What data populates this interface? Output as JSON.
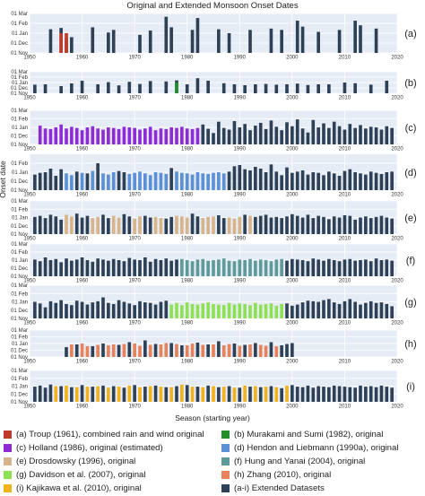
{
  "chart_data": {
    "type": "bar",
    "title": "Original and Extended Monsoon Onset Dates",
    "xlabel": "Season (starting year)",
    "ylabel": "Onset date",
    "x_ticks": [
      "1950",
      "1960",
      "1970",
      "1980",
      "1990",
      "2000",
      "2010",
      "2020"
    ],
    "y_ticks": [
      "01 Nov",
      "01 Dec",
      "01 Jan",
      "01 Feb",
      "01 Mar"
    ],
    "y_ticks_d": [
      "01 Nov",
      "01 Dec",
      "01 Jan",
      "01 Feb"
    ],
    "xlim": [
      1950,
      2020
    ],
    "ylim_days_from_01_Nov": [
      0,
      120
    ],
    "colors": {
      "troup": "#c0392b",
      "murakami": "#1e8f2a",
      "holland": "#8e2bd6",
      "hendon": "#5b8fd6",
      "drosdowsky": "#d8b48a",
      "hung": "#5f9a9b",
      "davidson": "#8ee055",
      "zhang": "#e8825a",
      "kajikawa": "#f2b21c",
      "extended": "#2d4056",
      "panel_bg": "#e6ecf6",
      "grid": "#ffffff"
    },
    "legend": [
      {
        "key": "troup",
        "label": "(a) Troup (1961), combined rain and wind original"
      },
      {
        "key": "murakami",
        "label": "(b) Murakami and Sumi (1982), original"
      },
      {
        "key": "holland",
        "label": "(c) Holland (1986), original (estimated)"
      },
      {
        "key": "hendon",
        "label": "(d) Hendon and Liebmann (1990a), original"
      },
      {
        "key": "drosdowsky",
        "label": "(e) Drosdowsky (1996), original"
      },
      {
        "key": "hung",
        "label": "(f) Hung and Yanai (2004), original"
      },
      {
        "key": "davidson",
        "label": "(g) Davidson et al. (2007), original"
      },
      {
        "key": "zhang",
        "label": "(h) Zhang (2010), original"
      },
      {
        "key": "kajikawa",
        "label": "(i) Kajikawa et al. (2010), original"
      },
      {
        "key": "extended",
        "label": "(a-i) Extended Datasets"
      }
    ],
    "panels": [
      {
        "label": "(a)",
        "orig_key": "troup",
        "orig_years": [
          1956,
          1957
        ],
        "ext_years": [
          1954,
          1956,
          1957,
          1958,
          1962,
          1965,
          1966,
          1971,
          1973,
          1976,
          1977,
          1981,
          1982,
          1986,
          1988,
          1992,
          1996,
          1998,
          2001,
          2002,
          2005,
          2009,
          2012,
          2013,
          2016
        ],
        "values": [
          72,
          76,
          45,
          48,
          78,
          62,
          70,
          55,
          68,
          110,
          78,
          70,
          106,
          72,
          60,
          70,
          74,
          70,
          98,
          80,
          64,
          70,
          98,
          84,
          74
        ]
      },
      {
        "label": "(b)",
        "orig_key": "murakami",
        "orig_years": [
          1978
        ],
        "ext_years": [
          1951,
          1953,
          1956,
          1958,
          1960,
          1963,
          1965,
          1967,
          1969,
          1971,
          1973,
          1976,
          1978,
          1980,
          1982,
          1984,
          1987,
          1989,
          1991,
          1993,
          1995,
          1997,
          1999,
          2001,
          2003,
          2005,
          2007,
          2010,
          2012,
          2015,
          2018
        ],
        "values": [
          48,
          50,
          40,
          55,
          70,
          50,
          62,
          44,
          64,
          52,
          68,
          66,
          72,
          50,
          84,
          70,
          56,
          50,
          45,
          50,
          52,
          48,
          50,
          54,
          46,
          50,
          50,
          60,
          56,
          48,
          70
        ]
      },
      {
        "label": "(c)",
        "orig_key": "holland",
        "orig_years": [
          1952,
          1953,
          1954,
          1955,
          1956,
          1957,
          1958,
          1959,
          1960,
          1961,
          1962,
          1963,
          1964,
          1965,
          1966,
          1967,
          1968,
          1969,
          1970,
          1971,
          1972,
          1973,
          1974,
          1975,
          1976,
          1977,
          1978,
          1979,
          1980,
          1981,
          1982
        ],
        "ext_years": [
          1983,
          1984,
          1985,
          1986,
          1987,
          1988,
          1989,
          1990,
          1991,
          1992,
          1993,
          1994,
          1995,
          1996,
          1997,
          1998,
          1999,
          2000,
          2001,
          2002,
          2003,
          2004,
          2005,
          2006,
          2007,
          2008,
          2009,
          2010,
          2011,
          2012,
          2013,
          2014,
          2015,
          2016,
          2017,
          2018,
          2019
        ],
        "values": [
          70,
          55,
          40,
          80,
          58,
          52,
          82,
          60,
          72,
          50,
          66,
          76,
          54,
          84,
          62,
          50,
          78,
          64,
          88,
          56,
          42,
          86,
          60,
          74,
          58,
          80,
          64,
          52,
          72,
          58,
          68,
          56,
          62,
          60,
          52,
          64,
          58,
          66,
          56,
          54,
          60,
          70,
          56,
          62,
          58,
          50,
          60,
          64,
          56,
          52,
          60,
          58,
          54,
          62,
          60,
          58,
          52,
          56,
          62,
          50,
          56,
          54,
          60,
          58,
          62,
          56,
          54,
          58
        ]
      },
      {
        "label": "(d)",
        "orig_key": "hendon",
        "orig_years": [
          1957,
          1958,
          1960,
          1962,
          1964,
          1965,
          1966,
          1969,
          1970,
          1971,
          1972,
          1973,
          1974,
          1975,
          1976,
          1978,
          1979,
          1980,
          1981,
          1982,
          1983,
          1984,
          1985,
          1986,
          1987
        ],
        "ext_years": [
          1951,
          1952,
          1953,
          1954,
          1955,
          1956,
          1959,
          1961,
          1963,
          1967,
          1968,
          1977,
          1988,
          1989,
          1990,
          1991,
          1992,
          1993,
          1994,
          1995,
          1996,
          1997,
          1998,
          1999,
          2000,
          2001,
          2002,
          2003,
          2004,
          2005,
          2006,
          2007,
          2008,
          2009,
          2010,
          2011,
          2012,
          2013,
          2014,
          2015,
          2016,
          2017,
          2018,
          2019
        ],
        "values": [
          52,
          58,
          60,
          72,
          48,
          70,
          62,
          56,
          90,
          64,
          60,
          74,
          62,
          80,
          84,
          70,
          66,
          78,
          72,
          60,
          86,
          62,
          50,
          76,
          58,
          62,
          66,
          52,
          60,
          58,
          50,
          62,
          56,
          48,
          64,
          70,
          60,
          56,
          52,
          62,
          58,
          54,
          60,
          62,
          56,
          50,
          58,
          64,
          56,
          52,
          60,
          54,
          58,
          62,
          56,
          50,
          60,
          58,
          54,
          62,
          58,
          56,
          52,
          60,
          56,
          54,
          58,
          60,
          56
        ]
      },
      {
        "label": "(e)",
        "orig_key": "drosdowsky",
        "orig_years": [
          1957,
          1958,
          1962,
          1963,
          1966,
          1967,
          1970,
          1971,
          1974,
          1975,
          1978,
          1979,
          1980,
          1983,
          1984,
          1985,
          1988,
          1989,
          1990,
          1992
        ],
        "ext_years": [
          1951,
          1952,
          1953,
          1954,
          1955,
          1956,
          1959,
          1960,
          1961,
          1964,
          1965,
          1968,
          1969,
          1972,
          1973,
          1976,
          1977,
          1981,
          1982,
          1986,
          1987,
          1991,
          1993,
          1994,
          1995,
          1996,
          1997,
          1998,
          1999,
          2000,
          2001,
          2002,
          2003,
          2004,
          2005,
          2006,
          2007,
          2008,
          2009,
          2010,
          2011,
          2012,
          2013,
          2014,
          2015,
          2016,
          2017,
          2018,
          2019
        ],
        "values": [
          62,
          66,
          58,
          70,
          64,
          52,
          74,
          60,
          66,
          70,
          58,
          72,
          64,
          66,
          60,
          56,
          62,
          74,
          64,
          68,
          58,
          70,
          62,
          66,
          70,
          60,
          62,
          58,
          64,
          72,
          66,
          60,
          70,
          58,
          66,
          62,
          54,
          64,
          60,
          68,
          66,
          52,
          60,
          64,
          58,
          62,
          66,
          60,
          56,
          70,
          64,
          58,
          62,
          66,
          60,
          56,
          64,
          62,
          58,
          66,
          64,
          60,
          58,
          62,
          64,
          60,
          56,
          62,
          66
        ]
      },
      {
        "label": "(f)",
        "orig_key": "hung",
        "orig_years": [
          1979,
          1980,
          1981,
          1982,
          1983,
          1984,
          1985,
          1986,
          1987,
          1988,
          1989,
          1990,
          1991,
          1992,
          1993,
          1994,
          1995,
          1996,
          1997,
          1998
        ],
        "ext_years": [
          1951,
          1952,
          1953,
          1954,
          1955,
          1956,
          1957,
          1958,
          1959,
          1960,
          1961,
          1962,
          1963,
          1964,
          1965,
          1966,
          1967,
          1968,
          1969,
          1970,
          1971,
          1972,
          1973,
          1974,
          1975,
          1976,
          1977,
          1978,
          1999,
          2000,
          2001,
          2002,
          2003,
          2004,
          2005,
          2006,
          2007,
          2008,
          2009,
          2010,
          2011,
          2012,
          2013,
          2014,
          2015,
          2016,
          2017,
          2018,
          2019
        ],
        "values": [
          62,
          56,
          70,
          60,
          64,
          52,
          66,
          58,
          62,
          70,
          60,
          54,
          66,
          62,
          58,
          64,
          60,
          56,
          68,
          62,
          60,
          70,
          54,
          64,
          60,
          66,
          58,
          62,
          58,
          64,
          62,
          60,
          56,
          66,
          62,
          58,
          64,
          60,
          56,
          62,
          64,
          58,
          60,
          62,
          56,
          66,
          60,
          62,
          58,
          64,
          60,
          56,
          62,
          64,
          58,
          60,
          62,
          66,
          58,
          56,
          62,
          60,
          64,
          58,
          62,
          60,
          56,
          62,
          64
        ]
      },
      {
        "label": "(g)",
        "orig_key": "davidson",
        "orig_years": [
          1977,
          1978,
          1979,
          1980,
          1981,
          1982,
          1983,
          1984,
          1985,
          1986,
          1987,
          1988,
          1989,
          1990,
          1991,
          1992,
          1993,
          1994,
          1995,
          1996,
          1997,
          1998
        ],
        "ext_years": [
          1951,
          1952,
          1953,
          1954,
          1955,
          1956,
          1957,
          1958,
          1959,
          1960,
          1961,
          1962,
          1963,
          1964,
          1965,
          1966,
          1967,
          1968,
          1969,
          1970,
          1971,
          1972,
          1973,
          1974,
          1975,
          1976,
          1999,
          2000,
          2001,
          2002,
          2003,
          2004,
          2005,
          2006,
          2007,
          2008,
          2009,
          2010,
          2011,
          2012,
          2013,
          2014,
          2015,
          2016,
          2017,
          2018,
          2019
        ],
        "values": [
          60,
          54,
          40,
          62,
          56,
          66,
          52,
          48,
          64,
          60,
          50,
          58,
          62,
          76,
          56,
          52,
          66,
          60,
          54,
          48,
          62,
          58,
          56,
          50,
          60,
          64,
          54,
          46,
          50,
          58,
          64,
          62,
          60,
          66,
          70,
          58,
          52,
          62,
          70,
          60,
          50,
          56,
          62,
          56,
          58,
          52,
          44,
          50,
          56,
          48,
          58,
          52,
          50,
          54,
          58,
          52,
          50,
          48,
          56,
          50,
          54,
          52,
          48,
          56,
          50,
          52,
          54,
          46,
          52
        ]
      },
      {
        "label": "(h)",
        "orig_key": "zhang",
        "orig_years": [
          1958,
          1960,
          1961,
          1963,
          1965,
          1966,
          1968,
          1970,
          1971,
          1973,
          1975,
          1976,
          1978,
          1980,
          1981,
          1983,
          1985,
          1987,
          1988,
          1990,
          1992,
          1994,
          1995,
          1997
        ],
        "ext_years": [
          1957,
          1959,
          1962,
          1964,
          1967,
          1969,
          1972,
          1974,
          1977,
          1979,
          1982,
          1984,
          1986,
          1989,
          1991,
          1993,
          1996,
          1998,
          1999,
          2000
        ],
        "values": [
          44,
          56,
          48,
          60,
          54,
          66,
          74,
          58,
          62,
          52,
          64,
          56,
          70,
          60,
          54,
          62,
          66,
          52,
          58,
          62,
          56,
          60,
          48,
          54,
          52,
          56,
          58,
          60,
          50,
          54,
          56,
          62,
          58,
          52,
          60,
          54,
          56,
          52,
          58,
          50,
          56,
          54,
          50,
          48
        ]
      },
      {
        "label": "(i)",
        "orig_key": "kajikawa",
        "orig_years": [
          1955,
          1957,
          1959,
          1961,
          1963,
          1965,
          1967,
          1969,
          1971,
          1973,
          1975,
          1977,
          1979,
          1981,
          1983,
          1985,
          1987,
          1989,
          1991,
          1993,
          1995,
          1997,
          1999
        ],
        "ext_years": [
          1951,
          1952,
          1953,
          1954,
          1956,
          1958,
          1960,
          1962,
          1964,
          1966,
          1968,
          1970,
          1972,
          1974,
          1976,
          1978,
          1980,
          1982,
          1984,
          1986,
          1988,
          1990,
          1992,
          1994,
          1996,
          1998,
          2000,
          2001,
          2002,
          2003,
          2004,
          2005,
          2006,
          2007,
          2008,
          2009,
          2010,
          2011,
          2012,
          2013,
          2014,
          2015,
          2016,
          2017,
          2018,
          2019
        ],
        "values": [
          58,
          62,
          54,
          66,
          60,
          56,
          64,
          58,
          62,
          60,
          54,
          64,
          58,
          62,
          56,
          60,
          64,
          58,
          62,
          56,
          60,
          54,
          58,
          56,
          60,
          52,
          64,
          58,
          56,
          62,
          54,
          60,
          58,
          56,
          62,
          60,
          58,
          56,
          54,
          62,
          58,
          60,
          56,
          62,
          58,
          54,
          60,
          62,
          56,
          58,
          60,
          54,
          58,
          62,
          56,
          60,
          58,
          56,
          66,
          58,
          56,
          60,
          58,
          54,
          62,
          60,
          58,
          56,
          62
        ]
      }
    ]
  }
}
